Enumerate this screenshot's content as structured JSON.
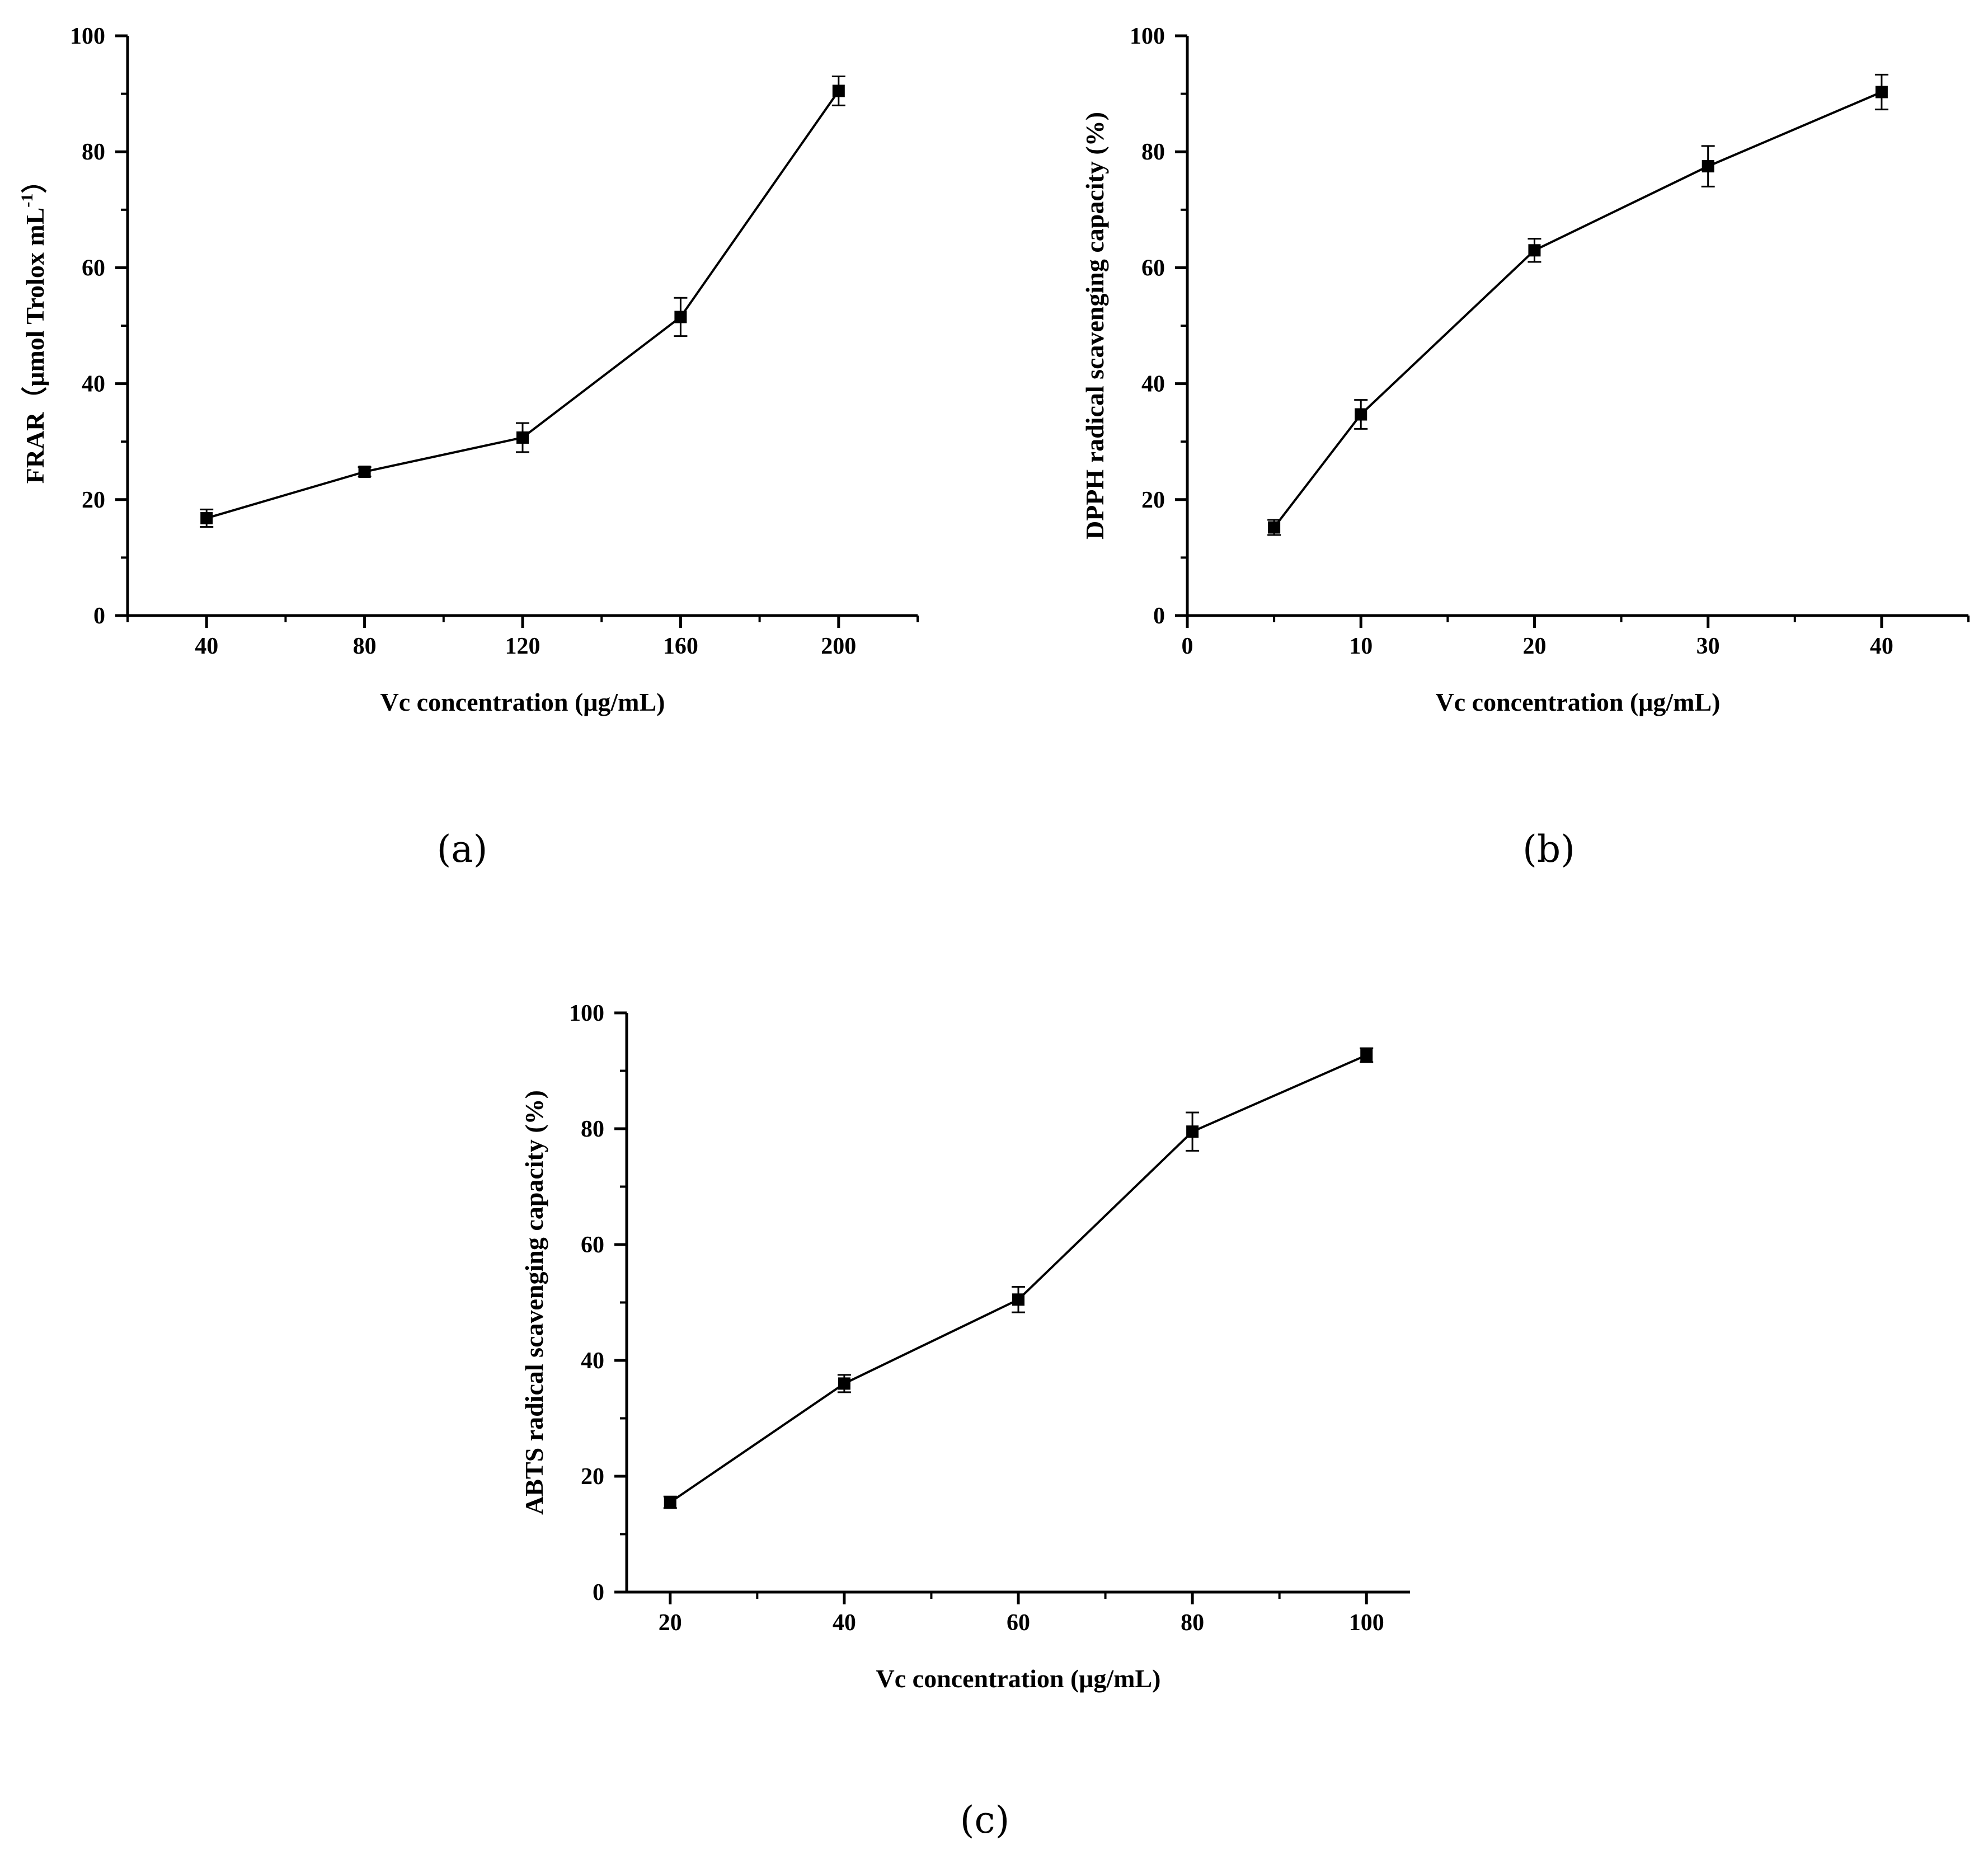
{
  "chart_data": [
    {
      "type": "line",
      "panel_label": "(a)",
      "xlabel": "Vc concentration (μg/mL)",
      "ylabel": "FRAR（μmol Trolox mL",
      "ylabel_sup": "-1",
      "ylabel_end": "）",
      "x_ticks": [
        "40",
        "80",
        "120",
        "160",
        "200"
      ],
      "y_ticks": [
        "0",
        "20",
        "40",
        "60",
        "80",
        "100"
      ],
      "xlim": [
        20,
        220
      ],
      "ylim": [
        0,
        100
      ],
      "series": [
        {
          "x": [
            40,
            80,
            120,
            160,
            200
          ],
          "y": [
            16.8,
            24.8,
            30.7,
            51.5,
            90.5
          ],
          "err": [
            1.5,
            0.8,
            2.5,
            3.3,
            2.5
          ]
        }
      ],
      "grid": false
    },
    {
      "type": "line",
      "panel_label": "(b)",
      "xlabel": "Vc concentration (μg/mL)",
      "ylabel": "DPPH radical scavenging capacity (%)",
      "x_ticks": [
        "0",
        "10",
        "20",
        "30",
        "40"
      ],
      "y_ticks": [
        "0",
        "20",
        "40",
        "60",
        "80",
        "100"
      ],
      "xlim": [
        0,
        45
      ],
      "ylim": [
        0,
        100
      ],
      "series": [
        {
          "x": [
            5,
            10,
            20,
            30,
            40
          ],
          "y": [
            15.2,
            34.7,
            63.0,
            77.5,
            90.3
          ],
          "err": [
            1.3,
            2.5,
            2.0,
            3.5,
            3.0
          ]
        }
      ],
      "grid": false
    },
    {
      "type": "line",
      "panel_label": "(c)",
      "xlabel": "Vc concentration (μg/mL)",
      "ylabel": "ABTS radical scavenging capacity (%)",
      "x_ticks": [
        "20",
        "40",
        "60",
        "80",
        "100"
      ],
      "y_ticks": [
        "0",
        "20",
        "40",
        "60",
        "80",
        "100"
      ],
      "xlim": [
        15,
        105
      ],
      "ylim": [
        0,
        100
      ],
      "series": [
        {
          "x": [
            20,
            40,
            60,
            80,
            100
          ],
          "y": [
            15.5,
            36.0,
            50.5,
            79.5,
            92.7
          ],
          "err": [
            1.0,
            1.5,
            2.2,
            3.3,
            1.2
          ]
        }
      ],
      "grid": false
    }
  ]
}
